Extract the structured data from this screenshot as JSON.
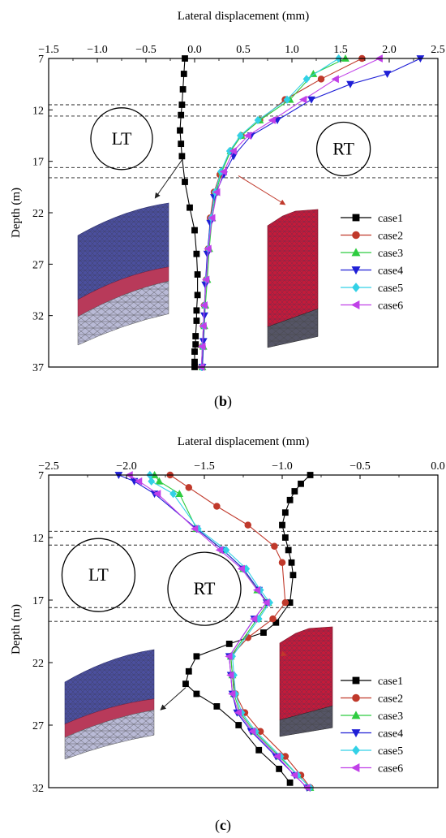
{
  "chart_data": [
    {
      "type": "line",
      "panel_label": "b",
      "xlabel": "Lateral displacement (mm)",
      "ylabel": "Depth (m)",
      "xlim": [
        -1.5,
        2.5
      ],
      "ylim": [
        7,
        37
      ],
      "y_inverted": true,
      "x_axis_position": "top",
      "xticks": [
        -1.5,
        -1.0,
        -0.5,
        0.0,
        0.5,
        1.0,
        1.5,
        2.0,
        2.5
      ],
      "xtick_labels": [
        "−1.5",
        "−1.0",
        "−0.5",
        "0.0",
        "0.5",
        "1.0",
        "1.5",
        "2.0",
        "2.5"
      ],
      "yticks": [
        7,
        12,
        17,
        22,
        27,
        32,
        37
      ],
      "ytick_labels": [
        "7",
        "12",
        "17",
        "22",
        "27",
        "32",
        "37"
      ],
      "grid": false,
      "legend_position": "right",
      "dashed_lines_depth": [
        11.5,
        12.6,
        17.6,
        18.6
      ],
      "annotations": [
        {
          "text": "LT",
          "x": -0.75,
          "y": 14.8,
          "circle_r": 0.38
        },
        {
          "text": "RT",
          "x": 1.53,
          "y": 15.8,
          "circle_r": 0.33
        }
      ],
      "insets": [
        {
          "name": "left-tunnel-mesh",
          "points_to": {
            "x": -0.11,
            "y": 16.6
          }
        },
        {
          "name": "right-tunnel-mesh",
          "points_to": {
            "x": 0.45,
            "y": 18.4
          }
        }
      ],
      "series": [
        {
          "name": "case1",
          "color": "#000000",
          "marker": "square",
          "x": [
            -0.1,
            -0.11,
            -0.12,
            -0.13,
            -0.14,
            -0.15,
            -0.14,
            -0.13,
            -0.1,
            -0.05,
            0.0,
            0.02,
            0.03,
            0.03,
            0.02,
            0.02,
            0.01,
            0.01,
            0.0,
            0.0,
            0.0
          ],
          "y": [
            7,
            8.5,
            10,
            11.5,
            12.5,
            14,
            15.3,
            16.5,
            19,
            21.5,
            23.7,
            26,
            28,
            30,
            31.5,
            32.5,
            34,
            34.8,
            35.5,
            36.5,
            37
          ]
        },
        {
          "name": "case2",
          "color": "#c0392b",
          "marker": "circle",
          "x": [
            1.72,
            1.3,
            0.93,
            0.67,
            0.48,
            0.37,
            0.26,
            0.2,
            0.16,
            0.14,
            0.12,
            0.1,
            0.09,
            0.08,
            0.07
          ],
          "y": [
            7,
            9,
            11,
            13,
            14.5,
            16,
            18.3,
            20,
            22.5,
            25.5,
            28.5,
            31,
            33,
            35,
            37
          ]
        },
        {
          "name": "case3",
          "color": "#2ecc40",
          "marker": "triangle-up",
          "x": [
            1.55,
            1.22,
            0.98,
            0.67,
            0.48,
            0.37,
            0.28,
            0.22,
            0.18,
            0.15,
            0.13,
            0.11,
            0.1,
            0.09,
            0.08
          ],
          "y": [
            7,
            8.5,
            11,
            13,
            14.5,
            16,
            18,
            20,
            22.5,
            25.5,
            28.5,
            31,
            33,
            35,
            37
          ]
        },
        {
          "name": "case4",
          "color": "#1f1fd6",
          "marker": "triangle-down",
          "x": [
            2.32,
            1.98,
            1.6,
            1.2,
            0.85,
            0.58,
            0.4,
            0.3,
            0.2,
            0.16,
            0.13,
            0.11,
            0.1,
            0.09,
            0.08
          ],
          "y": [
            7,
            8.5,
            9.5,
            11,
            13,
            14.5,
            16.5,
            18.3,
            20.5,
            23,
            26,
            29,
            32,
            34.5,
            37
          ]
        },
        {
          "name": "case5",
          "color": "#33d1e6",
          "marker": "diamond",
          "x": [
            1.48,
            1.15,
            0.95,
            0.65,
            0.47,
            0.36,
            0.27,
            0.21,
            0.17,
            0.14,
            0.12,
            0.1,
            0.09,
            0.08,
            0.07
          ],
          "y": [
            7,
            9,
            11,
            13,
            14.5,
            16,
            18,
            20,
            22.5,
            25.5,
            28.5,
            31,
            33,
            35,
            37
          ]
        },
        {
          "name": "case6",
          "color": "#c040e8",
          "marker": "triangle-left",
          "x": [
            1.9,
            1.45,
            1.12,
            0.8,
            0.55,
            0.4,
            0.3,
            0.23,
            0.18,
            0.14,
            0.12,
            0.1,
            0.09,
            0.08,
            0.07
          ],
          "y": [
            7,
            9,
            11,
            13,
            14.5,
            16,
            18,
            20,
            22.5,
            25.5,
            28.5,
            31,
            33,
            35,
            37
          ]
        }
      ]
    },
    {
      "type": "line",
      "panel_label": "c",
      "xlabel": "Lateral displacement (mm)",
      "ylabel": "Depth (m)",
      "xlim": [
        -2.5,
        0.0
      ],
      "ylim": [
        7,
        32
      ],
      "y_inverted": true,
      "x_axis_position": "top",
      "xticks": [
        -2.5,
        -2.0,
        -1.5,
        -1.0,
        -0.5,
        0.0
      ],
      "xtick_labels": [
        "−2.5",
        "−2.0",
        "−1.5",
        "−1.0",
        "−0.5",
        "0.0"
      ],
      "yticks": [
        7,
        12,
        17,
        22,
        27,
        32
      ],
      "ytick_labels": [
        "7",
        "12",
        "17",
        "22",
        "27",
        "32"
      ],
      "grid": false,
      "legend_position": "bottom-right",
      "dashed_lines_depth": [
        11.5,
        12.6,
        17.6,
        18.7
      ],
      "annotations": [
        {
          "text": "LT",
          "x": -2.18,
          "y": 15.0,
          "circle_r": 0.29
        },
        {
          "text": "RT",
          "x": -1.5,
          "y": 16.1,
          "circle_r": 0.29
        }
      ],
      "insets": [
        {
          "name": "left-tunnel-mesh",
          "points_to": {
            "x": -1.62,
            "y": 24.0
          }
        },
        {
          "name": "right-tunnel-mesh",
          "points_to": {
            "x": -1.0,
            "y": 21.3
          }
        }
      ],
      "series": [
        {
          "name": "case1",
          "color": "#000000",
          "marker": "square",
          "x": [
            -0.82,
            -0.88,
            -0.92,
            -0.95,
            -0.98,
            -1.0,
            -0.98,
            -0.96,
            -0.94,
            -0.93,
            -0.95,
            -1.04,
            -1.12,
            -1.34,
            -1.55,
            -1.6,
            -1.62,
            -1.55,
            -1.42,
            -1.28,
            -1.15,
            -1.02,
            -0.95
          ],
          "y": [
            7,
            7.7,
            8.3,
            9,
            10,
            11,
            12,
            13,
            14,
            15,
            17.2,
            18.8,
            19.6,
            20.5,
            21.5,
            22.7,
            23.7,
            24.5,
            25.5,
            27,
            29,
            30.5,
            31.6
          ]
        },
        {
          "name": "case2",
          "color": "#c0392b",
          "marker": "circle",
          "x": [
            -1.72,
            -1.6,
            -1.42,
            -1.22,
            -1.05,
            -1.0,
            -0.98,
            -1.06,
            -1.22,
            -1.33,
            -1.32,
            -1.3,
            -1.24,
            -1.14,
            -0.98,
            -0.88,
            -0.82
          ],
          "y": [
            7,
            8,
            9.5,
            11,
            12.7,
            14,
            17.2,
            18.5,
            20,
            21.5,
            23,
            24.5,
            26,
            27.5,
            29.5,
            31,
            32
          ]
        },
        {
          "name": "case3",
          "color": "#2ecc40",
          "marker": "triangle-up",
          "x": [
            -1.82,
            -1.79,
            -1.66,
            -1.55,
            -1.38,
            -1.25,
            -1.16,
            -1.09,
            -1.16,
            -1.33,
            -1.32,
            -1.31,
            -1.27,
            -1.18,
            -1.02,
            -0.9,
            -0.82
          ],
          "y": [
            7,
            7.5,
            8.5,
            11.3,
            13,
            14.5,
            16.2,
            17.2,
            18.5,
            21.5,
            23,
            24.5,
            26,
            27.5,
            29.5,
            31,
            32
          ]
        },
        {
          "name": "case4",
          "color": "#1f1fd6",
          "marker": "triangle-down",
          "x": [
            -2.05,
            -1.95,
            -1.82,
            -1.55,
            -1.38,
            -1.25,
            -1.15,
            -1.1,
            -1.18,
            -1.34,
            -1.33,
            -1.32,
            -1.29,
            -1.2,
            -1.04,
            -0.92,
            -0.84
          ],
          "y": [
            7,
            7.5,
            8.5,
            11.3,
            13,
            14.5,
            16.2,
            17.2,
            18.5,
            21.5,
            23,
            24.5,
            26,
            27.5,
            29.5,
            31,
            32
          ]
        },
        {
          "name": "case5",
          "color": "#33d1e6",
          "marker": "diamond",
          "x": [
            -1.85,
            -1.84,
            -1.7,
            -1.54,
            -1.36,
            -1.23,
            -1.14,
            -1.08,
            -1.15,
            -1.32,
            -1.31,
            -1.3,
            -1.26,
            -1.17,
            -1.01,
            -0.9,
            -0.82
          ],
          "y": [
            7,
            7.5,
            8.5,
            11.3,
            13,
            14.5,
            16.2,
            17.2,
            18.5,
            21.5,
            23,
            24.5,
            26,
            27.5,
            29.5,
            31,
            32
          ]
        },
        {
          "name": "case6",
          "color": "#c040e8",
          "marker": "triangle-left",
          "x": [
            -1.98,
            -1.92,
            -1.8,
            -1.56,
            -1.4,
            -1.26,
            -1.16,
            -1.1,
            -1.18,
            -1.34,
            -1.33,
            -1.32,
            -1.28,
            -1.19,
            -1.03,
            -0.92,
            -0.84
          ],
          "y": [
            7,
            7.5,
            8.5,
            11.3,
            13,
            14.5,
            16.2,
            17.2,
            18.5,
            21.5,
            23,
            24.5,
            26,
            27.5,
            29.5,
            31,
            32
          ]
        }
      ]
    }
  ]
}
